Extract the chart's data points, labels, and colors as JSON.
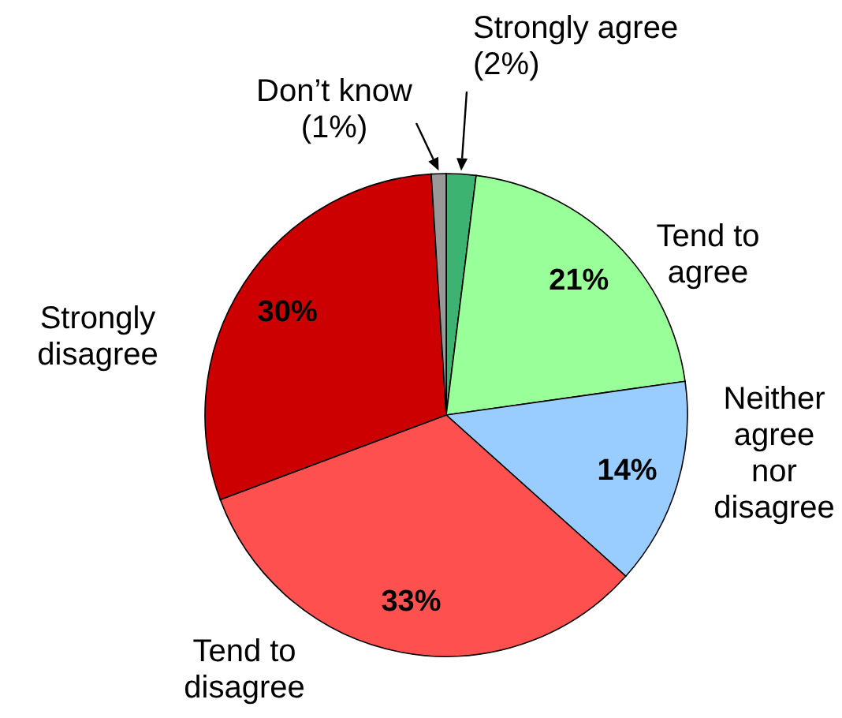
{
  "chart_data": {
    "type": "pie",
    "categories": [
      "Strongly agree",
      "Tend to agree",
      "Neither agree nor disagree",
      "Tend to disagree",
      "Strongly disagree",
      "Don’t know"
    ],
    "values": [
      2,
      21,
      14,
      33,
      30,
      1
    ],
    "colors": [
      "#3cb371",
      "#99ff99",
      "#99ccff",
      "#ff5050",
      "#cc0000",
      "#999999"
    ],
    "value_labels": [
      "(2%)",
      "21%",
      "14%",
      "33%",
      "30%",
      "(1%)"
    ]
  }
}
